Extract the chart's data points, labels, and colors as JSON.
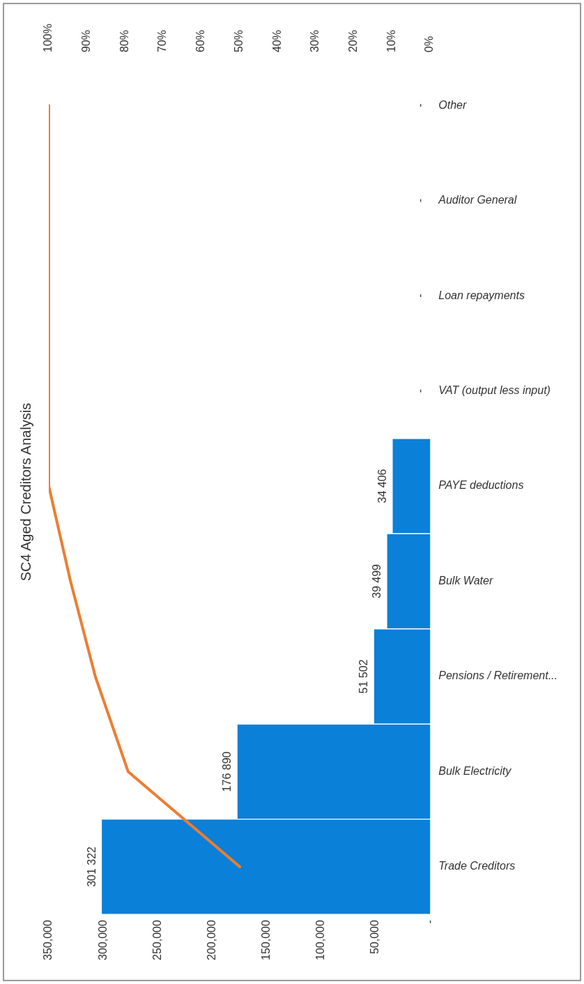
{
  "chart_data": {
    "type": "bar",
    "orientation": "horizontal",
    "title": "SC4 Aged Creditors Analysis",
    "categories": [
      "Other",
      "Auditor General",
      "Loan repayments",
      "VAT (output less input)",
      "PAYE deductions",
      "Bulk Water",
      "Pensions / Retirement...",
      "Bulk Electricity",
      "Trade Creditors"
    ],
    "series": [
      {
        "color": "#0a80d8",
        "values": [
          0,
          0,
          0,
          0,
          34406,
          39499,
          51502,
          176890,
          301322
        ],
        "value_labels": [
          "-",
          "-",
          "-",
          "-",
          "34 406",
          "39 499",
          "51 502",
          "176 890",
          "301 322"
        ]
      },
      {
        "type": "line",
        "axis": "x2",
        "color": "#ed7d31",
        "values": [
          100,
          100,
          100,
          100,
          100,
          94.3,
          87.8,
          79.2,
          49.9
        ]
      }
    ],
    "xlim": [
      350000,
      0
    ],
    "xticks": [
      {
        "value": 0,
        "label": "-"
      },
      {
        "value": 50000,
        "label": "50,000"
      },
      {
        "value": 100000,
        "label": "100,000"
      },
      {
        "value": 150000,
        "label": "150,000"
      },
      {
        "value": 200000,
        "label": "200,000"
      },
      {
        "value": 250000,
        "label": "250,000"
      },
      {
        "value": 300000,
        "label": "300,000"
      },
      {
        "value": 350000,
        "label": "350,000"
      }
    ],
    "x2lim": [
      100,
      0
    ],
    "x2ticks": [
      {
        "value": 0,
        "label": "0%"
      },
      {
        "value": 10,
        "label": "10%"
      },
      {
        "value": 20,
        "label": "20%"
      },
      {
        "value": 30,
        "label": "30%"
      },
      {
        "value": 40,
        "label": "40%"
      },
      {
        "value": 50,
        "label": "50%"
      },
      {
        "value": 60,
        "label": "60%"
      },
      {
        "value": 70,
        "label": "70%"
      },
      {
        "value": 80,
        "label": "80%"
      },
      {
        "value": 90,
        "label": "90%"
      },
      {
        "value": 100,
        "label": "100%"
      }
    ],
    "grid": false,
    "legend": false,
    "marker": "none"
  }
}
